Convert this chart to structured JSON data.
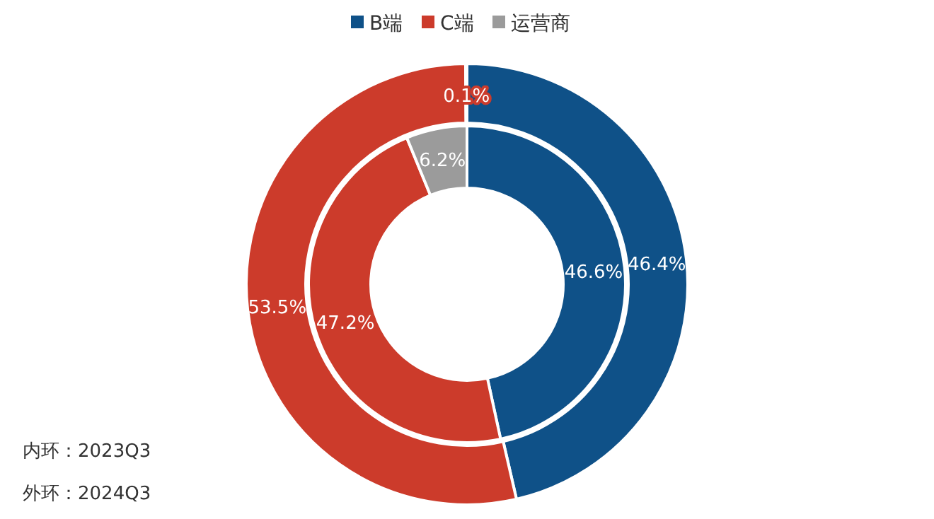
{
  "chart_data": {
    "type": "donut",
    "categories": [
      "B端",
      "C端",
      "运营商"
    ],
    "colors": [
      "#0f5188",
      "#cc3b2b",
      "#9b9b9b"
    ],
    "series": [
      {
        "values": [
          46.6,
          47.2,
          6.2
        ],
        "value_labels": [
          "46.6%",
          "47.2%",
          "6.2%"
        ]
      },
      {
        "values": [
          46.4,
          53.5,
          0.1
        ],
        "value_labels": [
          "46.4%",
          "53.5%",
          "0.1%"
        ]
      }
    ],
    "legend": "top",
    "annotations": [
      "内环：2023Q3",
      "外环：2024Q3"
    ]
  }
}
